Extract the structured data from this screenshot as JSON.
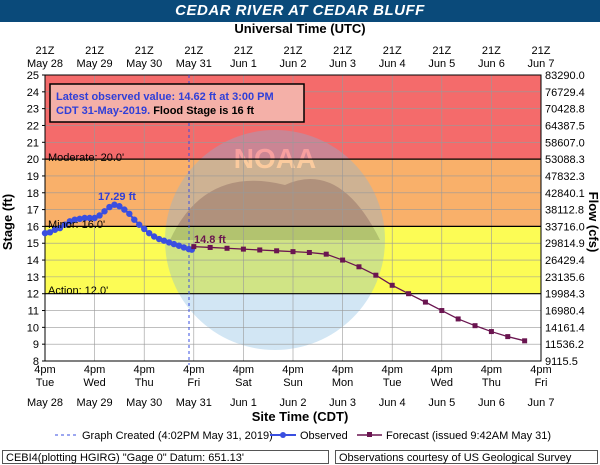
{
  "title": "CEDAR RIVER AT CEDAR BLUFF",
  "top_axis_title": "Universal Time (UTC)",
  "bottom_axis_title": "Site Time (CDT)",
  "y_left_label": "Stage (ft)",
  "y_right_label": "Flow (cfs)",
  "top_ticks": [
    {
      "l1": "21Z",
      "l2": "May 28"
    },
    {
      "l1": "21Z",
      "l2": "May 29"
    },
    {
      "l1": "21Z",
      "l2": "May 30"
    },
    {
      "l1": "21Z",
      "l2": "May 31"
    },
    {
      "l1": "21Z",
      "l2": "Jun 1"
    },
    {
      "l1": "21Z",
      "l2": "Jun 2"
    },
    {
      "l1": "21Z",
      "l2": "Jun 3"
    },
    {
      "l1": "21Z",
      "l2": "Jun 4"
    },
    {
      "l1": "21Z",
      "l2": "Jun 5"
    },
    {
      "l1": "21Z",
      "l2": "Jun 6"
    },
    {
      "l1": "21Z",
      "l2": "Jun 7"
    }
  ],
  "bottom_ticks": [
    {
      "l1": "4pm",
      "l2": "Tue",
      "l3": "May 28"
    },
    {
      "l1": "4pm",
      "l2": "Wed",
      "l3": "May 29"
    },
    {
      "l1": "4pm",
      "l2": "Thu",
      "l3": "May 30"
    },
    {
      "l1": "4pm",
      "l2": "Fri",
      "l3": "May 31"
    },
    {
      "l1": "4pm",
      "l2": "Sat",
      "l3": "Jun 1"
    },
    {
      "l1": "4pm",
      "l2": "Sun",
      "l3": "Jun 2"
    },
    {
      "l1": "4pm",
      "l2": "Mon",
      "l3": "Jun 3"
    },
    {
      "l1": "4pm",
      "l2": "Tue",
      "l3": "Jun 4"
    },
    {
      "l1": "4pm",
      "l2": "Wed",
      "l3": "Jun 5"
    },
    {
      "l1": "4pm",
      "l2": "Thu",
      "l3": "Jun 6"
    },
    {
      "l1": "4pm",
      "l2": "Fri",
      "l3": "Jun 7"
    }
  ],
  "y_ticks": [
    8,
    9,
    10,
    11,
    12,
    13,
    14,
    15,
    16,
    17,
    18,
    19,
    20,
    21,
    22,
    23,
    24,
    25
  ],
  "flow_ticks": [
    "9115.5",
    "11536.2",
    "14161.4",
    "16980.4",
    "19984.3",
    "23135.6",
    "26429.4",
    "29814.9",
    "33716.0",
    "38112.8",
    "42840.1",
    "47832.3",
    "53088.3",
    "58607.0",
    "64387.5",
    "70428.8",
    "76729.4",
    "83290.0"
  ],
  "info_box": {
    "line1": "Latest observed value: 14.62  ft at 3:00 PM",
    "line2a": "CDT 31-May-2019.",
    "line2b": " Flood Stage is 16 ft"
  },
  "stage_labels": {
    "moderate": "Moderate: 20.0'",
    "minor": "Minor: 16.0'",
    "action": "Action: 12.0'"
  },
  "callouts": {
    "peak": "17.29 ft",
    "forecast_start": "14.8 ft"
  },
  "legend": {
    "created": "Graph Created (4:02PM May 31, 2019)",
    "observed": "Observed",
    "forecast": "Forecast (issued 9:42AM May 31)"
  },
  "footer": {
    "left": "CEBI4(plotting HGIRG) \"Gage 0\" Datum: 651.13'",
    "right": "Observations courtesy of US Geological Survey"
  },
  "colors": {
    "major": "#f46b6b",
    "moderate": "#f9b06a",
    "minor": "#fcfc55",
    "observed": "#3a4fe0",
    "forecast": "#6a1550",
    "title_bar": "#0a4a7a"
  },
  "chart_data": {
    "type": "line",
    "x_unit": "days since Tue May 28 4pm CDT",
    "xlim": [
      0,
      10
    ],
    "ylim": [
      8,
      25
    ],
    "flood_categories": {
      "action": 12.0,
      "minor": 16.0,
      "moderate": 20.0,
      "major_top": 25
    },
    "series": [
      {
        "name": "Observed",
        "x": [
          0.0,
          0.1,
          0.2,
          0.3,
          0.4,
          0.5,
          0.6,
          0.7,
          0.8,
          0.9,
          1.0,
          1.1,
          1.2,
          1.3,
          1.4,
          1.5,
          1.6,
          1.7,
          1.8,
          1.9,
          2.0,
          2.1,
          2.2,
          2.3,
          2.4,
          2.5,
          2.6,
          2.7,
          2.8,
          2.9,
          2.96
        ],
        "y": [
          15.6,
          15.65,
          15.8,
          15.9,
          16.1,
          16.3,
          16.4,
          16.45,
          16.5,
          16.5,
          16.5,
          16.65,
          16.9,
          17.15,
          17.29,
          17.2,
          17.0,
          16.75,
          16.4,
          16.1,
          15.85,
          15.6,
          15.4,
          15.25,
          15.15,
          15.05,
          14.95,
          14.85,
          14.75,
          14.65,
          14.62
        ]
      },
      {
        "name": "Forecast",
        "x": [
          3.0,
          3.33,
          3.67,
          4.0,
          4.33,
          4.67,
          5.0,
          5.33,
          5.67,
          6.0,
          6.33,
          6.67,
          7.0,
          7.33,
          7.67,
          8.0,
          8.33,
          8.67,
          9.0,
          9.33,
          9.67
        ],
        "y": [
          14.8,
          14.75,
          14.7,
          14.65,
          14.6,
          14.55,
          14.5,
          14.45,
          14.35,
          14.0,
          13.6,
          13.1,
          12.5,
          12.0,
          11.5,
          11.0,
          10.5,
          10.1,
          9.75,
          9.45,
          9.2
        ]
      }
    ]
  }
}
